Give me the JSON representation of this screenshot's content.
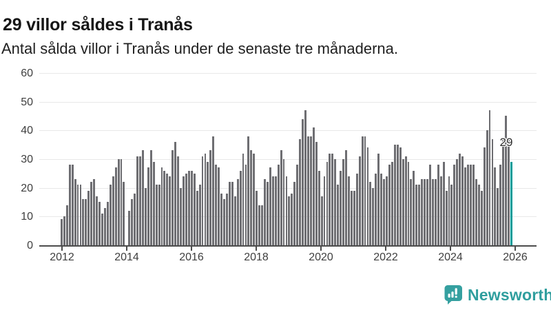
{
  "header": {
    "title": "29 villor såldes i Tranås",
    "subtitle": "Antal sålda villor i Tranås under de senaste tre månaderna."
  },
  "chart_data": {
    "type": "bar",
    "title": "29 villor såldes i Tranås",
    "subtitle": "Antal sålda villor i Tranås under de senaste tre månaderna.",
    "x_tick_labels": [
      "2012",
      "2014",
      "2016",
      "2018",
      "2020",
      "2022",
      "2024",
      "2026"
    ],
    "y_tick_labels": [
      "0",
      "10",
      "20",
      "30",
      "40",
      "50",
      "60"
    ],
    "y_ticks": [
      0,
      10,
      20,
      30,
      40,
      50,
      60
    ],
    "ylim": [
      0,
      60
    ],
    "grid": true,
    "legend": false,
    "bar_color": "#6e6e72",
    "highlight_color": "#009d9a",
    "x_description": "monthly bars from 2012 to end of 2025, last bar highlighted",
    "values": [
      9,
      10,
      14,
      28,
      28,
      23,
      21,
      21,
      16,
      16,
      19,
      22,
      23,
      17,
      15,
      11,
      13,
      15,
      21,
      24,
      27,
      30,
      30,
      22,
      0,
      12,
      16,
      18,
      31,
      31,
      33,
      20,
      27,
      33,
      29,
      21,
      21,
      27,
      26,
      25,
      24,
      33,
      36,
      31,
      20,
      24,
      25,
      26,
      26,
      25,
      19,
      21,
      31,
      32,
      29,
      33,
      38,
      28,
      27,
      18,
      16,
      18,
      22,
      22,
      17,
      23,
      26,
      32,
      28,
      38,
      33,
      32,
      19,
      14,
      14,
      23,
      22,
      27,
      24,
      24,
      28,
      33,
      30,
      24,
      17,
      18,
      22,
      28,
      37,
      44,
      47,
      38,
      38,
      41,
      36,
      26,
      17,
      24,
      29,
      32,
      32,
      30,
      21,
      26,
      30,
      33,
      24,
      19,
      19,
      25,
      31,
      38,
      38,
      34,
      22,
      20,
      25,
      32,
      25,
      23,
      24,
      28,
      29,
      35,
      35,
      34,
      30,
      31,
      29,
      23,
      26,
      21,
      21,
      23,
      23,
      23,
      28,
      23,
      23,
      28,
      24,
      29,
      19,
      24,
      21,
      28,
      30,
      32,
      31,
      27,
      28,
      28,
      28,
      23,
      21,
      19,
      34,
      40,
      47,
      37,
      27,
      20,
      28,
      37,
      45,
      37,
      29
    ],
    "last_value": 29,
    "annotation_label": "29"
  },
  "annotation": {
    "last_value_label": "29"
  },
  "footer": {
    "brand": "Newsworthy",
    "brand_color": "#2f9e9e",
    "logo_icon": "newsworthy-speech-bubble-bar-chart-icon"
  }
}
